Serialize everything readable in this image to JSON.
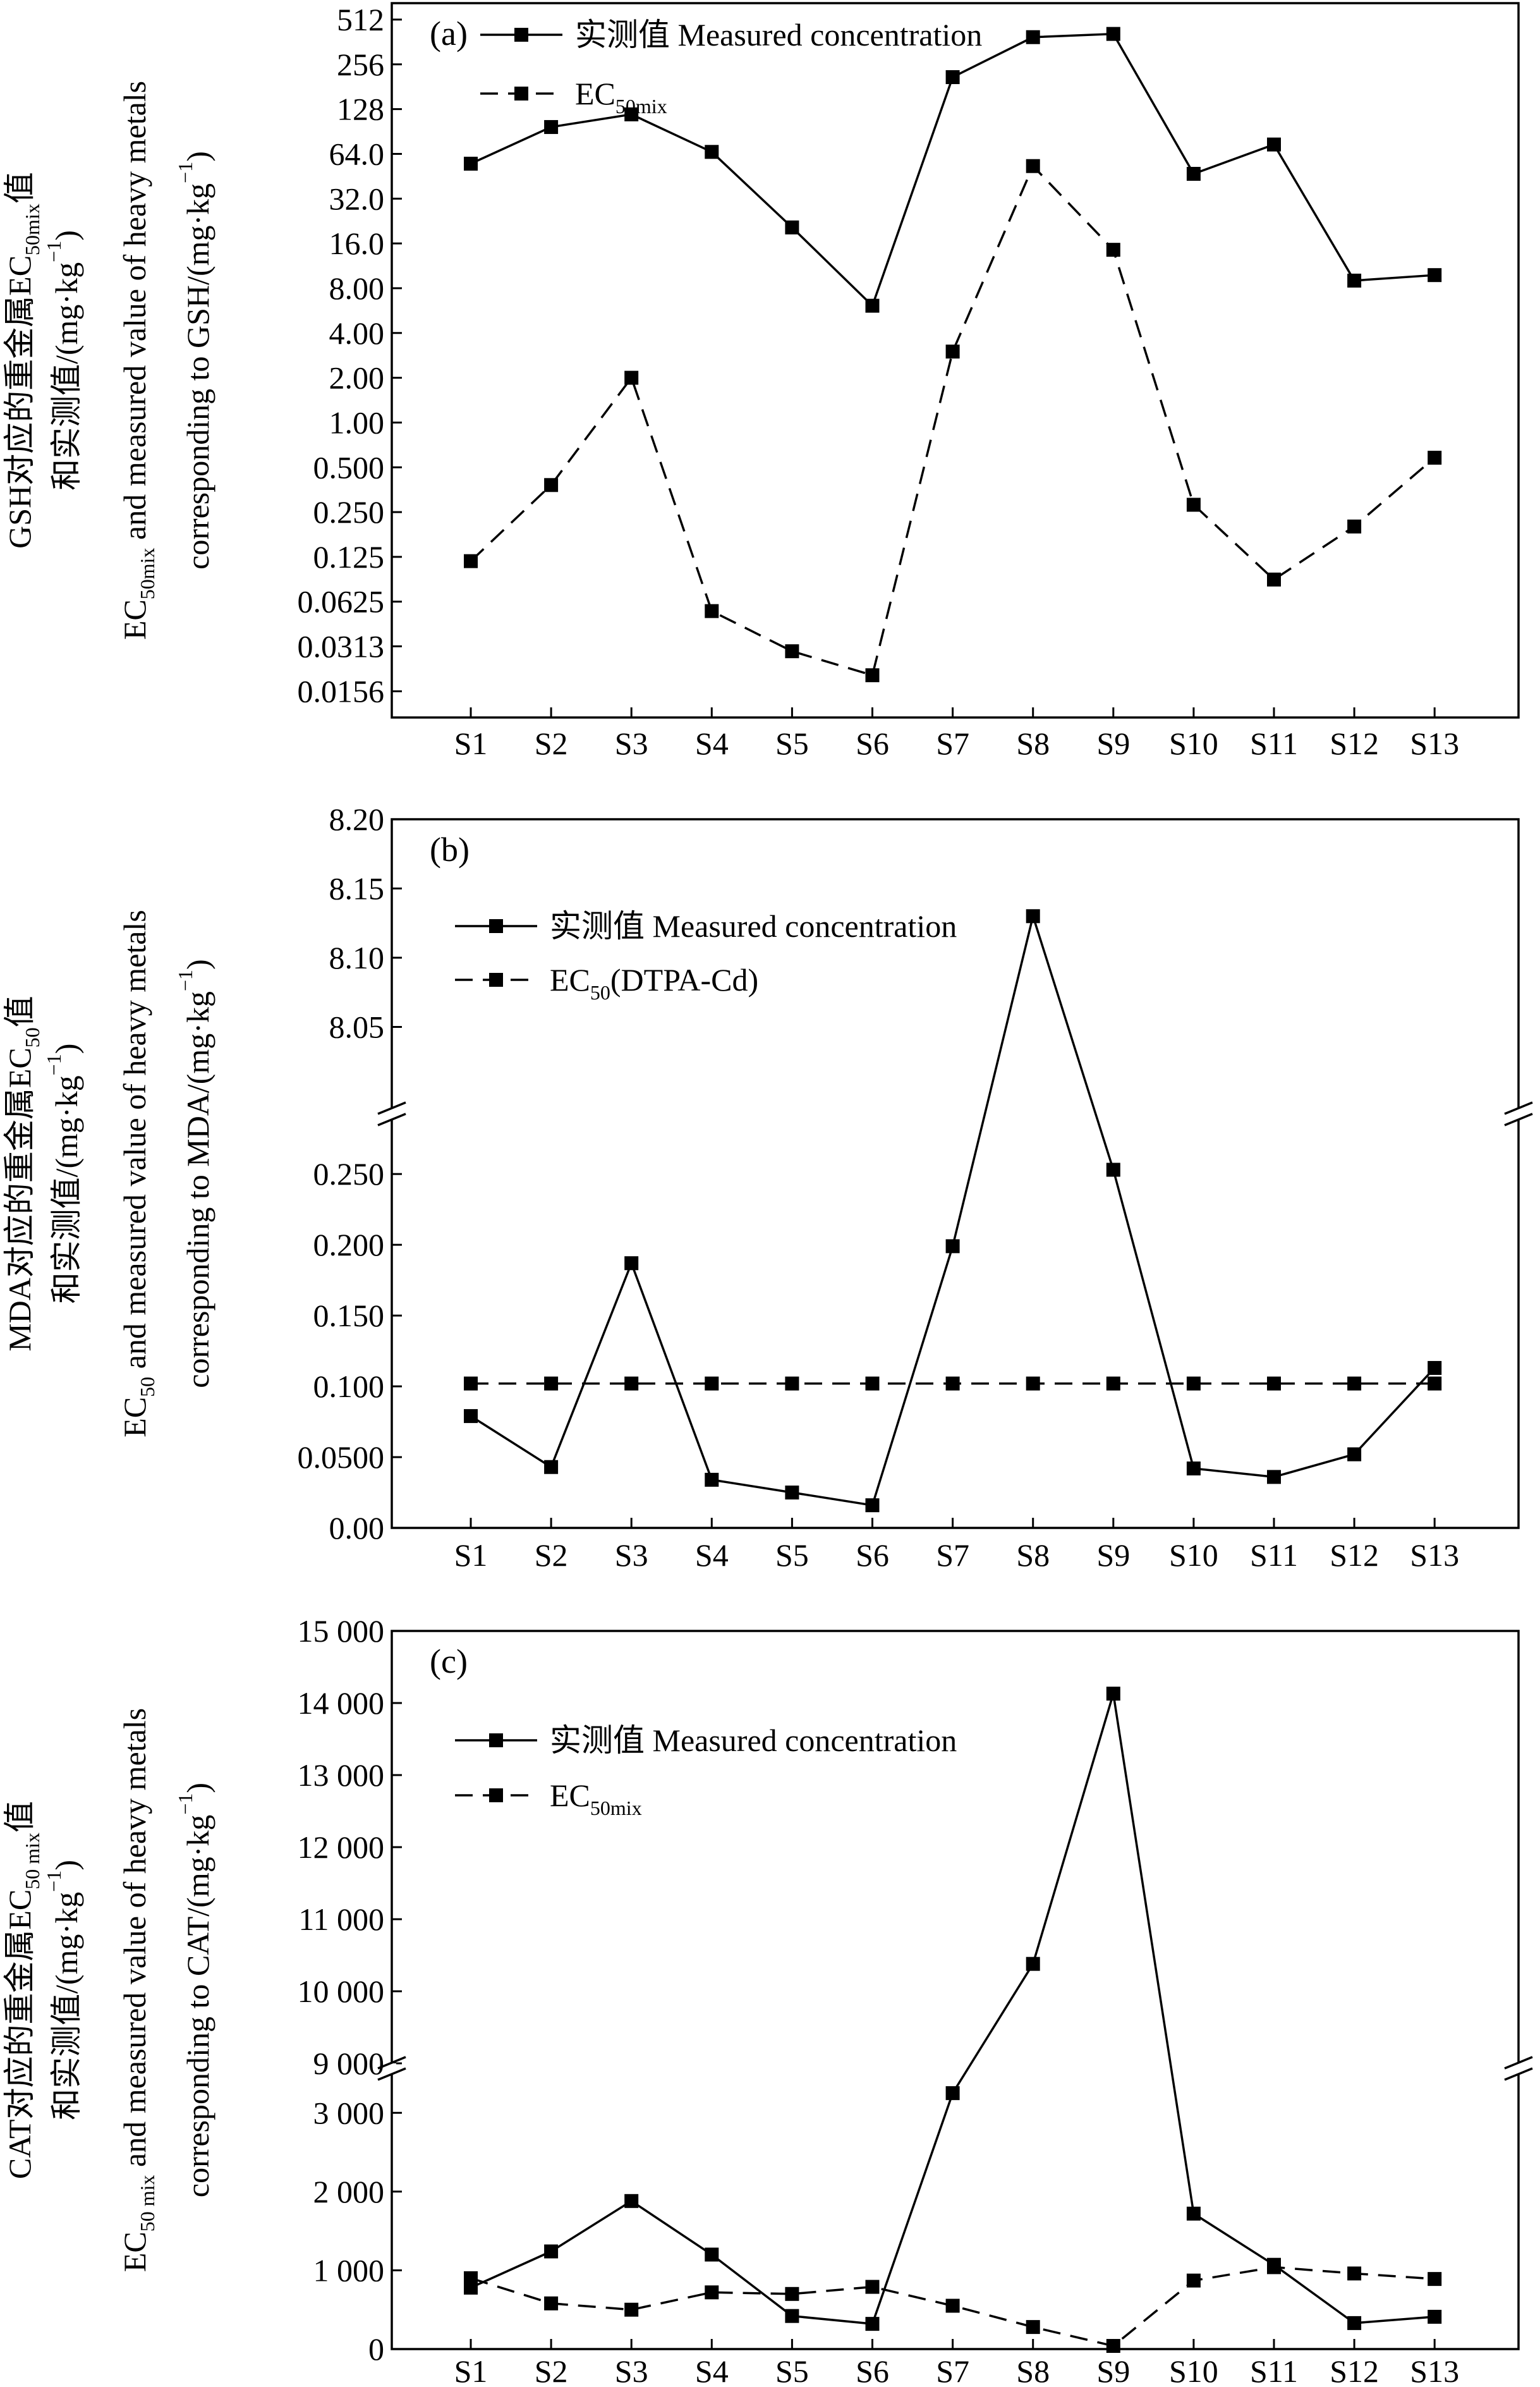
{
  "chart_data": [
    {
      "id": "a",
      "type": "line",
      "panel_label": "(a)",
      "y_scale": "log2",
      "categories": [
        "S1",
        "S2",
        "S3",
        "S4",
        "S5",
        "S6",
        "S7",
        "S8",
        "S9",
        "S10",
        "S11",
        "S12",
        "S13"
      ],
      "ylim": [
        0.0104,
        660
      ],
      "yticks": [
        512,
        256,
        128,
        64.0,
        32.0,
        16.0,
        8.0,
        4.0,
        2.0,
        1.0,
        0.5,
        0.25,
        0.125,
        0.0625,
        0.0313,
        0.0156
      ],
      "ytick_labels": [
        "512",
        "256",
        "128",
        "64.0",
        "32.0",
        "16.0",
        "8.00",
        "4.00",
        "2.00",
        "1.00",
        "0.500",
        "0.250",
        "0.125",
        "0.0625",
        "0.0313",
        "0.0156"
      ],
      "ylabel_zh": {
        "pre": "GSH对应的重金属EC",
        "sub": "50mix",
        "post": "值"
      },
      "ylabel_zh2": {
        "pre": "和实测值/(mg·kg",
        "sup": "−1",
        "post": ")"
      },
      "ylabel_en": {
        "pre": "EC",
        "sub": "50mix",
        "post": " and measured value of heavy metals"
      },
      "ylabel_en2": {
        "pre": "corresponding to GSH/(mg·kg",
        "sup": "−1",
        "post": ")"
      },
      "legend": [
        {
          "style": "solid",
          "text": "实测值 Measured concentration",
          "sub": ""
        },
        {
          "style": "dashed",
          "text": "EC",
          "sub": "50mix"
        }
      ],
      "series": [
        {
          "name": "实测值 Measured concentration",
          "style": "solid",
          "values": [
            55,
            97,
            118,
            66,
            20.5,
            6.1,
            210,
            390,
            410,
            47,
            74,
            9.0,
            9.8
          ]
        },
        {
          "name": "EC50mix",
          "style": "dashed",
          "values": [
            0.117,
            0.38,
            2.0,
            0.054,
            0.029,
            0.02,
            3.0,
            53,
            14.5,
            0.28,
            0.088,
            0.2,
            0.58
          ]
        }
      ]
    },
    {
      "id": "b",
      "type": "line",
      "panel_label": "(b)",
      "y_scale": "broken",
      "categories": [
        "S1",
        "S2",
        "S3",
        "S4",
        "S5",
        "S6",
        "S7",
        "S8",
        "S9",
        "S10",
        "S11",
        "S12",
        "S13"
      ],
      "lower_ylim": [
        0,
        0.28
      ],
      "upper_ylim": [
        8.0,
        8.2
      ],
      "lower_ticks": [
        0,
        0.05,
        0.1,
        0.15,
        0.2,
        0.25
      ],
      "lower_tick_labels": [
        "0.00",
        "0.0500",
        "0.100",
        "0.150",
        "0.200",
        "0.250"
      ],
      "upper_ticks": [
        8.05,
        8.1,
        8.15,
        8.2
      ],
      "upper_tick_labels": [
        "8.05",
        "8.10",
        "8.15",
        "8.20"
      ],
      "ylabel_zh": {
        "pre": "MDA对应的重金属EC",
        "sub": "50",
        "post": "值"
      },
      "ylabel_zh2": {
        "pre": "和实测值/(mg·kg",
        "sup": "−1",
        "post": ")"
      },
      "ylabel_en": {
        "pre": "EC",
        "sub": "50",
        "post": " and measured value of heavy metals"
      },
      "ylabel_en2": {
        "pre": "corresponding to MDA/(mg·kg",
        "sup": "−1",
        "post": ")"
      },
      "legend": [
        {
          "style": "solid",
          "text": "实测值 Measured concentration",
          "sub": ""
        },
        {
          "style": "dashed",
          "text": "EC",
          "sub": "50",
          "post": "(DTPA-Cd)"
        }
      ],
      "series": [
        {
          "name": "实测值 Measured concentration",
          "style": "solid",
          "values": [
            0.079,
            0.043,
            0.187,
            0.034,
            0.025,
            0.016,
            0.199,
            8.13,
            0.253,
            0.042,
            0.036,
            0.052,
            0.113
          ]
        },
        {
          "name": "EC50(DTPA-Cd)",
          "style": "dashed",
          "values": [
            0.102,
            0.102,
            0.102,
            0.102,
            0.102,
            0.102,
            0.102,
            0.102,
            0.102,
            0.102,
            0.102,
            0.102,
            0.102
          ]
        }
      ]
    },
    {
      "id": "c",
      "type": "line",
      "panel_label": "(c)",
      "y_scale": "broken",
      "categories": [
        "S1",
        "S2",
        "S3",
        "S4",
        "S5",
        "S6",
        "S7",
        "S8",
        "S9",
        "S10",
        "S11",
        "S12",
        "S13"
      ],
      "lower_ylim": [
        0,
        3500
      ],
      "upper_ylim": [
        9000,
        15000
      ],
      "lower_ticks": [
        0,
        1000,
        2000,
        3000
      ],
      "lower_tick_labels": [
        "0",
        "1 000",
        "2 000",
        "3 000"
      ],
      "upper_ticks": [
        9000,
        10000,
        11000,
        12000,
        13000,
        14000,
        15000
      ],
      "upper_tick_labels": [
        "9 000",
        "10 000",
        "11 000",
        "12 000",
        "13 000",
        "14 000",
        "15 000"
      ],
      "ylabel_zh": {
        "pre": "CAT对应的重金属EC",
        "sub": "50 mix",
        "post": "值"
      },
      "ylabel_zh2": {
        "pre": "和实测值/(mg·kg",
        "sup": "−1",
        "post": ")"
      },
      "ylabel_en": {
        "pre": "EC",
        "sub": "50 mix",
        "post": " and measured value of heavy metals"
      },
      "ylabel_en2": {
        "pre": "corresponding to CAT/(mg·kg",
        "sup": "−1",
        "post": ")"
      },
      "legend": [
        {
          "style": "solid",
          "text": "实测值 Measured concentration",
          "sub": ""
        },
        {
          "style": "dashed",
          "text": "EC",
          "sub": "50mix"
        }
      ],
      "series": [
        {
          "name": "实测值 Measured concentration",
          "style": "solid",
          "values": [
            780,
            1240,
            1880,
            1200,
            420,
            320,
            3250,
            10380,
            14130,
            1720,
            1070,
            330,
            410
          ]
        },
        {
          "name": "EC50mix",
          "style": "dashed",
          "values": [
            900,
            580,
            500,
            720,
            700,
            790,
            550,
            280,
            40,
            870,
            1040,
            960,
            890
          ]
        }
      ]
    }
  ]
}
